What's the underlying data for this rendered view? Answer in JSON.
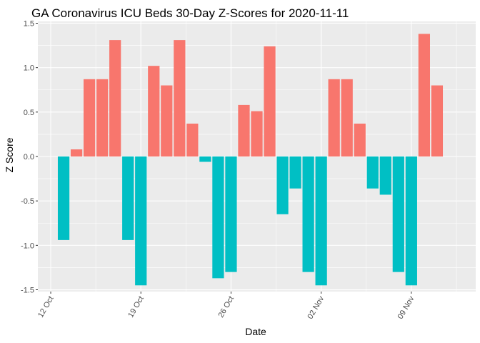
{
  "chart_data": {
    "type": "bar",
    "title": "GA Coronavirus ICU Beds 30-Day Z-Scores for 2020-11-11",
    "xlabel": "Date",
    "ylabel": "Z Score",
    "x_ticks": [
      {
        "date": "2020-10-12",
        "label": "12 Oct"
      },
      {
        "date": "2020-10-19",
        "label": "19 Oct"
      },
      {
        "date": "2020-10-26",
        "label": "26 Oct"
      },
      {
        "date": "2020-11-02",
        "label": "02 Nov"
      },
      {
        "date": "2020-11-09",
        "label": "09 Nov"
      }
    ],
    "y_ticks": [
      1.5,
      1.0,
      0.5,
      0.0,
      -0.5,
      -1.0,
      -1.5
    ],
    "y_tick_labels": [
      "1.5",
      "1.0",
      "0.5",
      "0.0",
      "-0.5",
      "-1.0",
      "-1.5"
    ],
    "ylim": [
      -1.52,
      1.52
    ],
    "xlim": [
      "2020-10-11",
      "2020-11-14"
    ],
    "grid": true,
    "legend": "none",
    "colors": {
      "positive": "#F8766D",
      "negative": "#00BFC4",
      "panel": "#EBEBEB",
      "grid": "#FFFFFF"
    },
    "points": [
      {
        "x": "2020-10-13",
        "y": -0.94
      },
      {
        "x": "2020-10-14",
        "y": 0.08
      },
      {
        "x": "2020-10-15",
        "y": 0.87
      },
      {
        "x": "2020-10-16",
        "y": 0.87
      },
      {
        "x": "2020-10-17",
        "y": 1.31
      },
      {
        "x": "2020-10-18",
        "y": -0.94
      },
      {
        "x": "2020-10-19",
        "y": -1.45
      },
      {
        "x": "2020-10-20",
        "y": 1.02
      },
      {
        "x": "2020-10-21",
        "y": 0.8
      },
      {
        "x": "2020-10-22",
        "y": 1.31
      },
      {
        "x": "2020-10-23",
        "y": 0.37
      },
      {
        "x": "2020-10-24",
        "y": -0.06
      },
      {
        "x": "2020-10-25",
        "y": -1.37
      },
      {
        "x": "2020-10-26",
        "y": -1.3
      },
      {
        "x": "2020-10-27",
        "y": 0.58
      },
      {
        "x": "2020-10-28",
        "y": 0.51
      },
      {
        "x": "2020-10-29",
        "y": 1.24
      },
      {
        "x": "2020-10-30",
        "y": -0.65
      },
      {
        "x": "2020-10-31",
        "y": -0.36
      },
      {
        "x": "2020-11-01",
        "y": -1.3
      },
      {
        "x": "2020-11-02",
        "y": -1.45
      },
      {
        "x": "2020-11-03",
        "y": 0.87
      },
      {
        "x": "2020-11-04",
        "y": 0.87
      },
      {
        "x": "2020-11-05",
        "y": 0.37
      },
      {
        "x": "2020-11-06",
        "y": -0.36
      },
      {
        "x": "2020-11-07",
        "y": -0.43
      },
      {
        "x": "2020-11-08",
        "y": -1.3
      },
      {
        "x": "2020-11-09",
        "y": -1.45
      },
      {
        "x": "2020-11-10",
        "y": 1.38
      },
      {
        "x": "2020-11-11",
        "y": 0.8
      }
    ]
  }
}
